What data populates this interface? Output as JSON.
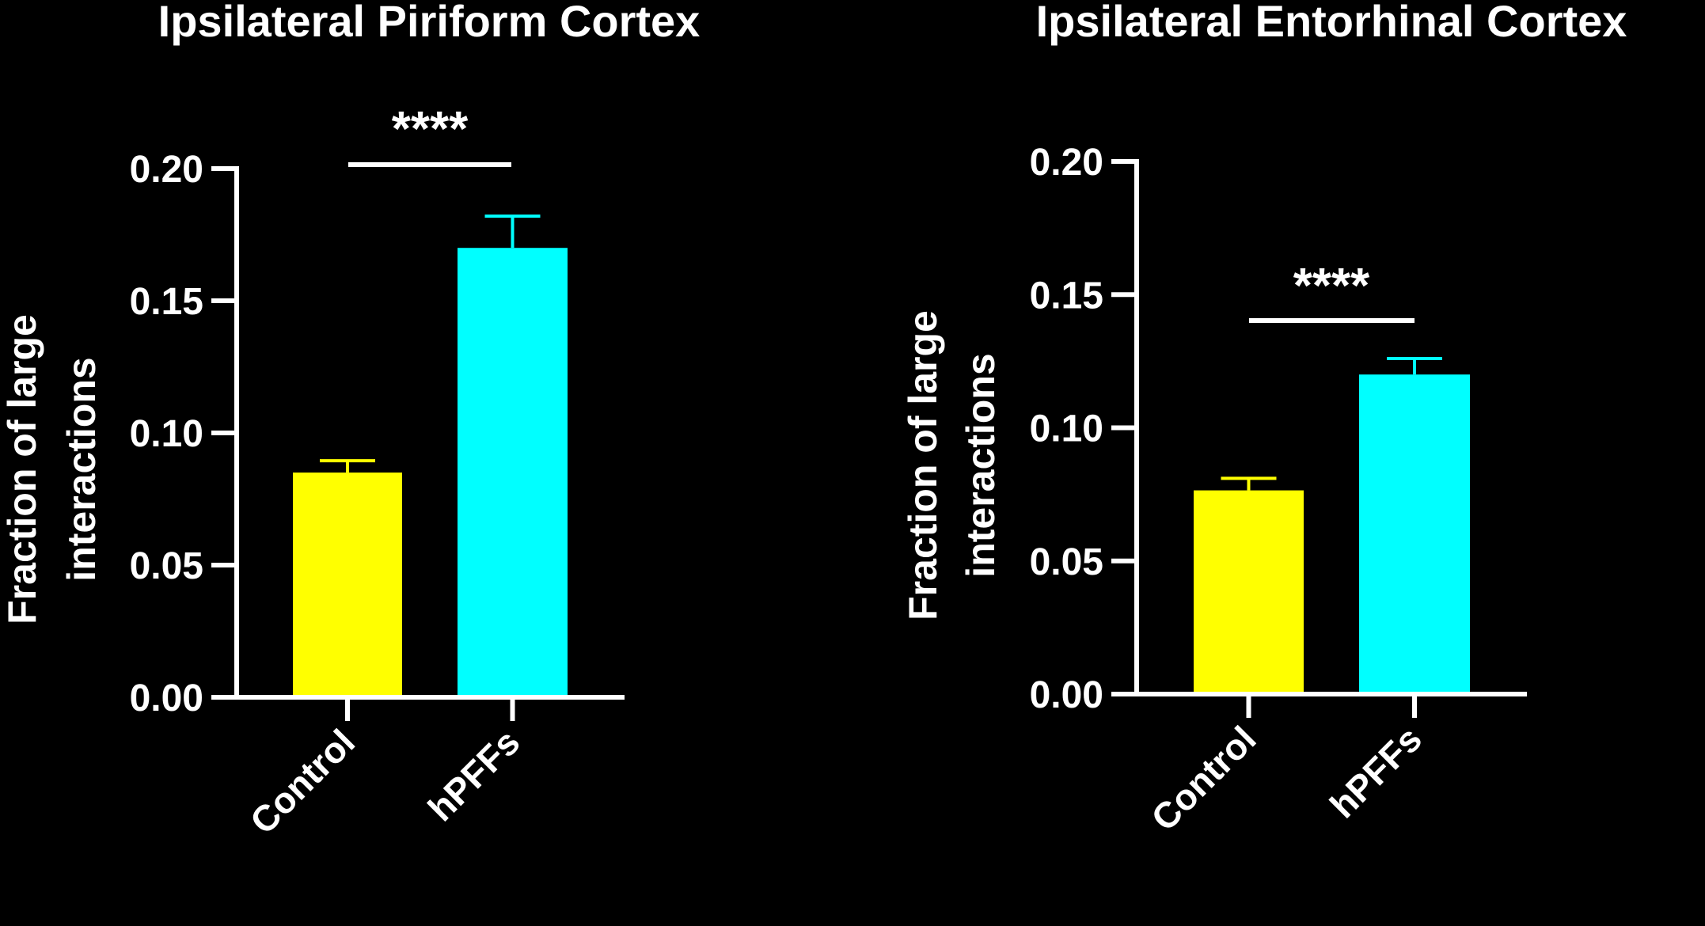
{
  "background": "#000000",
  "chart_data": [
    {
      "type": "bar",
      "title": "Ipsilateral Piriform Cortex",
      "ylabel": [
        "Fraction of large",
        "interactions"
      ],
      "categories": [
        "Control",
        "hPFFs"
      ],
      "values": [
        0.085,
        0.17
      ],
      "error_upper": [
        0.0895,
        0.182
      ],
      "colors": [
        "#FFFF00",
        "#00FFFF"
      ],
      "ylim": [
        0,
        0.2
      ],
      "yticks": [
        "0.00",
        "0.05",
        "0.10",
        "0.15",
        "0.20"
      ],
      "significance": {
        "label": "****",
        "between": [
          "Control",
          "hPFFs"
        ]
      },
      "grid": false
    },
    {
      "type": "bar",
      "title": "Ipsilateral Entorhinal Cortex",
      "ylabel": [
        "Fraction of large",
        "interactions"
      ],
      "categories": [
        "Control",
        "hPFFs"
      ],
      "values": [
        0.0765,
        0.12
      ],
      "error_upper": [
        0.081,
        0.126
      ],
      "colors": [
        "#FFFF00",
        "#00FFFF"
      ],
      "ylim": [
        0,
        0.2
      ],
      "yticks": [
        "0.00",
        "0.05",
        "0.10",
        "0.15",
        "0.20"
      ],
      "significance": {
        "label": "****",
        "between": [
          "Control",
          "hPFFs"
        ]
      },
      "grid": false
    }
  ]
}
